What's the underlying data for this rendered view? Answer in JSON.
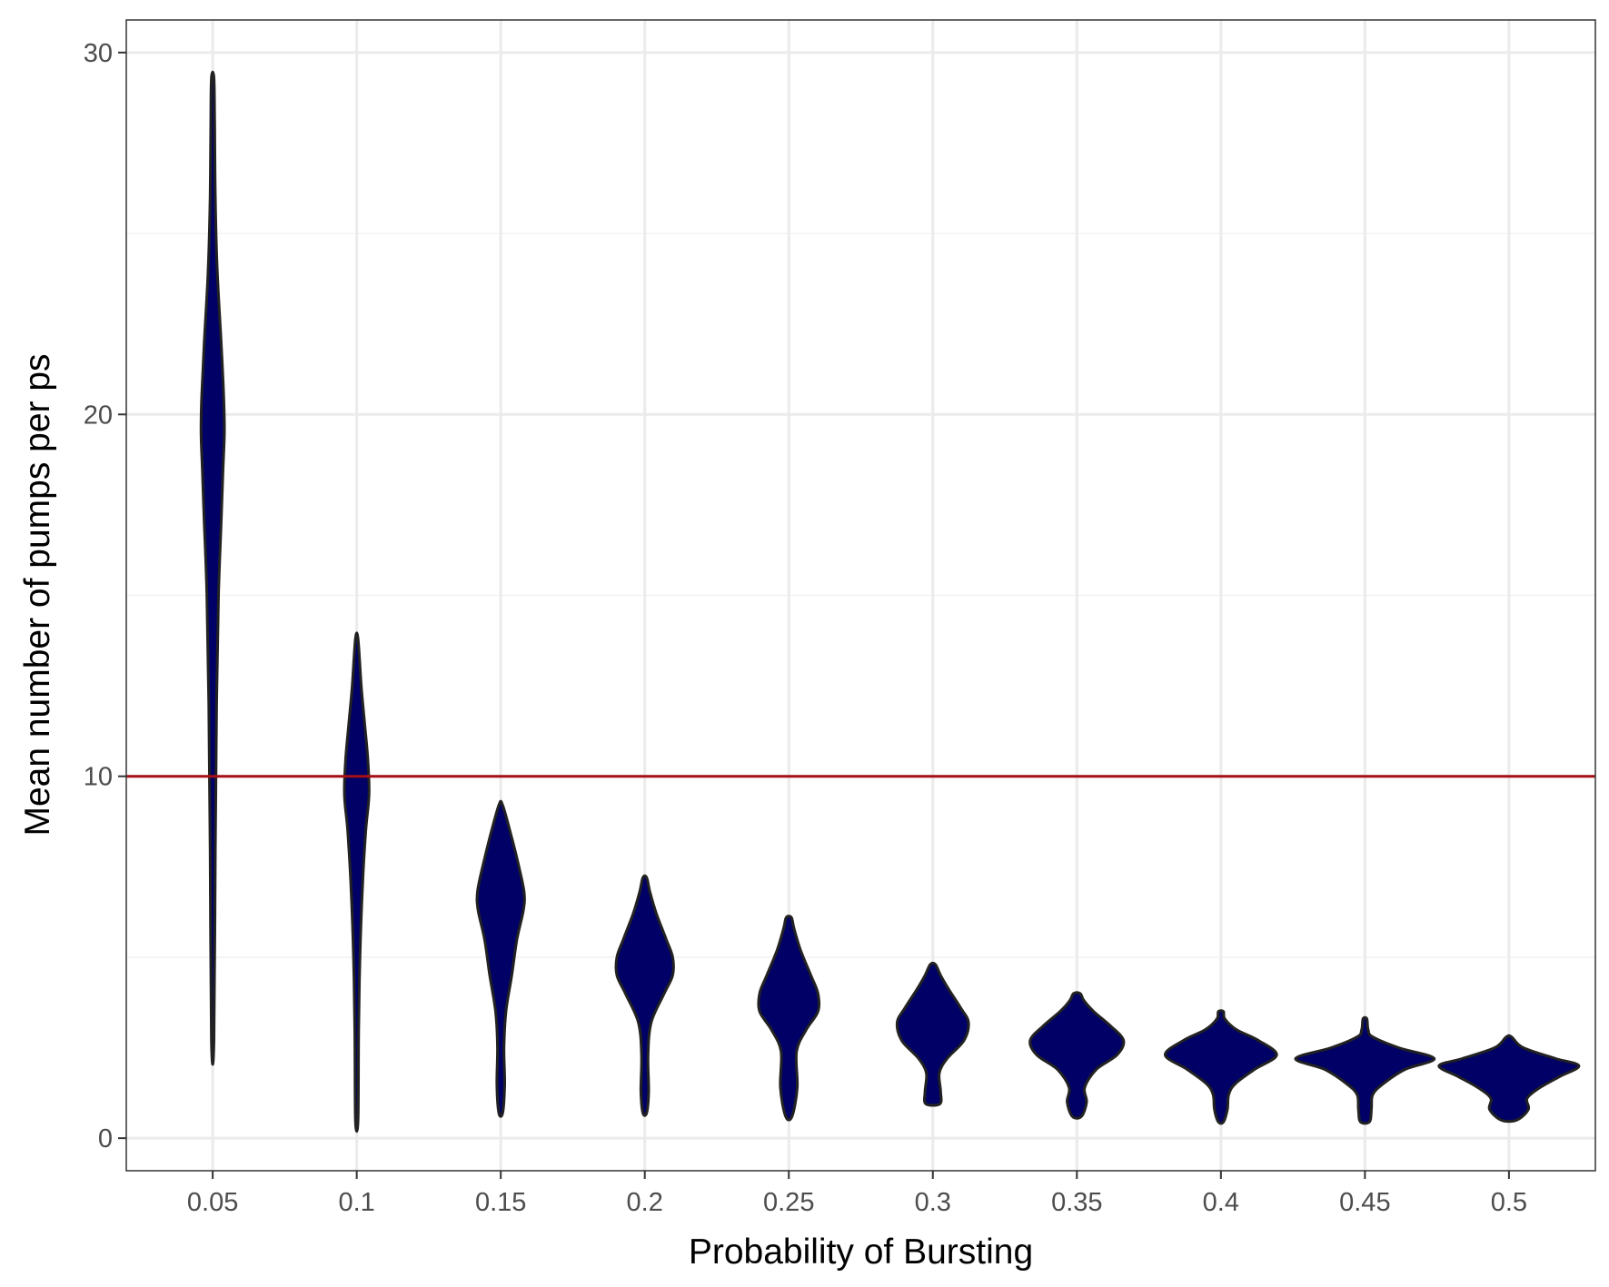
{
  "chart_data": {
    "type": "violin",
    "xlabel": "Probability of Bursting",
    "ylabel": "Mean number of pumps per ps",
    "categories": [
      "0.05",
      "0.1",
      "0.15",
      "0.2",
      "0.25",
      "0.3",
      "0.35",
      "0.4",
      "0.45",
      "0.5"
    ],
    "ylim": [
      -0.9,
      30.9
    ],
    "yticks": [
      0,
      10,
      20,
      30
    ],
    "yticks_minor": [
      5,
      15,
      25
    ],
    "grid": true,
    "reference_line": {
      "y": 10,
      "color": "#a50f15"
    },
    "colors": {
      "fill": "#000066",
      "outline": "#222222",
      "grid_major": "#ebebeb",
      "grid_minor": "#f3f3f3",
      "panel_border": "#333333"
    },
    "violins": [
      {
        "category": "0.05",
        "min": 2.7,
        "max": 29.3,
        "profile": [
          [
            2.7,
            0.02
          ],
          [
            8,
            0.04
          ],
          [
            12,
            0.06
          ],
          [
            15,
            0.09
          ],
          [
            17,
            0.13
          ],
          [
            18.5,
            0.16
          ],
          [
            19.5,
            0.18
          ],
          [
            20.5,
            0.17
          ],
          [
            22,
            0.13
          ],
          [
            24,
            0.07
          ],
          [
            26,
            0.04
          ],
          [
            28,
            0.03
          ],
          [
            29.3,
            0.02
          ]
        ]
      },
      {
        "category": "0.1",
        "min": 0.5,
        "max": 13.8,
        "profile": [
          [
            0.5,
            0.02
          ],
          [
            3,
            0.03
          ],
          [
            5,
            0.05
          ],
          [
            7,
            0.09
          ],
          [
            8.5,
            0.14
          ],
          [
            9.5,
            0.19
          ],
          [
            10.5,
            0.17
          ],
          [
            11.5,
            0.12
          ],
          [
            12.5,
            0.07
          ],
          [
            13.8,
            0.02
          ]
        ]
      },
      {
        "category": "0.15",
        "min": 0.7,
        "max": 9.2,
        "profile": [
          [
            0.7,
            0.03
          ],
          [
            1.5,
            0.06
          ],
          [
            2.5,
            0.05
          ],
          [
            3.5,
            0.08
          ],
          [
            4.5,
            0.17
          ],
          [
            5.5,
            0.25
          ],
          [
            6.3,
            0.35
          ],
          [
            6.8,
            0.36
          ],
          [
            7.5,
            0.28
          ],
          [
            8.3,
            0.17
          ],
          [
            9.2,
            0.03
          ]
        ]
      },
      {
        "category": "0.2",
        "min": 0.7,
        "max": 7.2,
        "profile": [
          [
            0.7,
            0.03
          ],
          [
            1.3,
            0.06
          ],
          [
            2.3,
            0.05
          ],
          [
            3.2,
            0.1
          ],
          [
            4.0,
            0.3
          ],
          [
            4.5,
            0.43
          ],
          [
            5.0,
            0.43
          ],
          [
            5.5,
            0.33
          ],
          [
            6.2,
            0.18
          ],
          [
            6.8,
            0.08
          ],
          [
            7.2,
            0.03
          ]
        ]
      },
      {
        "category": "0.25",
        "min": 0.6,
        "max": 6.1,
        "profile": [
          [
            0.6,
            0.05
          ],
          [
            1.4,
            0.13
          ],
          [
            2.4,
            0.12
          ],
          [
            3.0,
            0.27
          ],
          [
            3.5,
            0.45
          ],
          [
            4.0,
            0.45
          ],
          [
            4.5,
            0.34
          ],
          [
            5.2,
            0.18
          ],
          [
            5.8,
            0.08
          ],
          [
            6.1,
            0.04
          ]
        ]
      },
      {
        "category": "0.3",
        "min": 0.95,
        "max": 4.8,
        "profile": [
          [
            0.95,
            0.11
          ],
          [
            1.3,
            0.12
          ],
          [
            1.8,
            0.1
          ],
          [
            2.2,
            0.22
          ],
          [
            2.7,
            0.48
          ],
          [
            3.2,
            0.55
          ],
          [
            3.6,
            0.43
          ],
          [
            4.1,
            0.25
          ],
          [
            4.5,
            0.12
          ],
          [
            4.8,
            0.04
          ]
        ]
      },
      {
        "category": "0.35",
        "min": 0.6,
        "max": 4.0,
        "profile": [
          [
            0.6,
            0.07
          ],
          [
            1.0,
            0.15
          ],
          [
            1.4,
            0.12
          ],
          [
            1.9,
            0.3
          ],
          [
            2.3,
            0.62
          ],
          [
            2.7,
            0.72
          ],
          [
            3.1,
            0.52
          ],
          [
            3.5,
            0.26
          ],
          [
            3.8,
            0.11
          ],
          [
            4.0,
            0.05
          ]
        ]
      },
      {
        "category": "0.4",
        "min": 0.45,
        "max": 3.5,
        "profile": [
          [
            0.45,
            0.04
          ],
          [
            0.8,
            0.1
          ],
          [
            1.2,
            0.12
          ],
          [
            1.5,
            0.22
          ],
          [
            1.9,
            0.52
          ],
          [
            2.3,
            0.86
          ],
          [
            2.7,
            0.58
          ],
          [
            3.0,
            0.24
          ],
          [
            3.3,
            0.06
          ],
          [
            3.5,
            0.04
          ]
        ]
      },
      {
        "category": "0.45",
        "min": 0.45,
        "max": 3.3,
        "profile": [
          [
            0.45,
            0.07
          ],
          [
            0.8,
            0.1
          ],
          [
            1.2,
            0.12
          ],
          [
            1.5,
            0.28
          ],
          [
            1.9,
            0.62
          ],
          [
            2.2,
            1.07
          ],
          [
            2.5,
            0.52
          ],
          [
            2.8,
            0.12
          ],
          [
            3.0,
            0.05
          ],
          [
            3.3,
            0.03
          ]
        ]
      },
      {
        "category": "0.5",
        "min": 0.5,
        "max": 2.8,
        "profile": [
          [
            0.5,
            0.12
          ],
          [
            0.8,
            0.3
          ],
          [
            1.1,
            0.28
          ],
          [
            1.4,
            0.48
          ],
          [
            1.7,
            0.78
          ],
          [
            2.0,
            1.08
          ],
          [
            2.2,
            0.72
          ],
          [
            2.5,
            0.22
          ],
          [
            2.8,
            0.04
          ]
        ]
      }
    ]
  }
}
